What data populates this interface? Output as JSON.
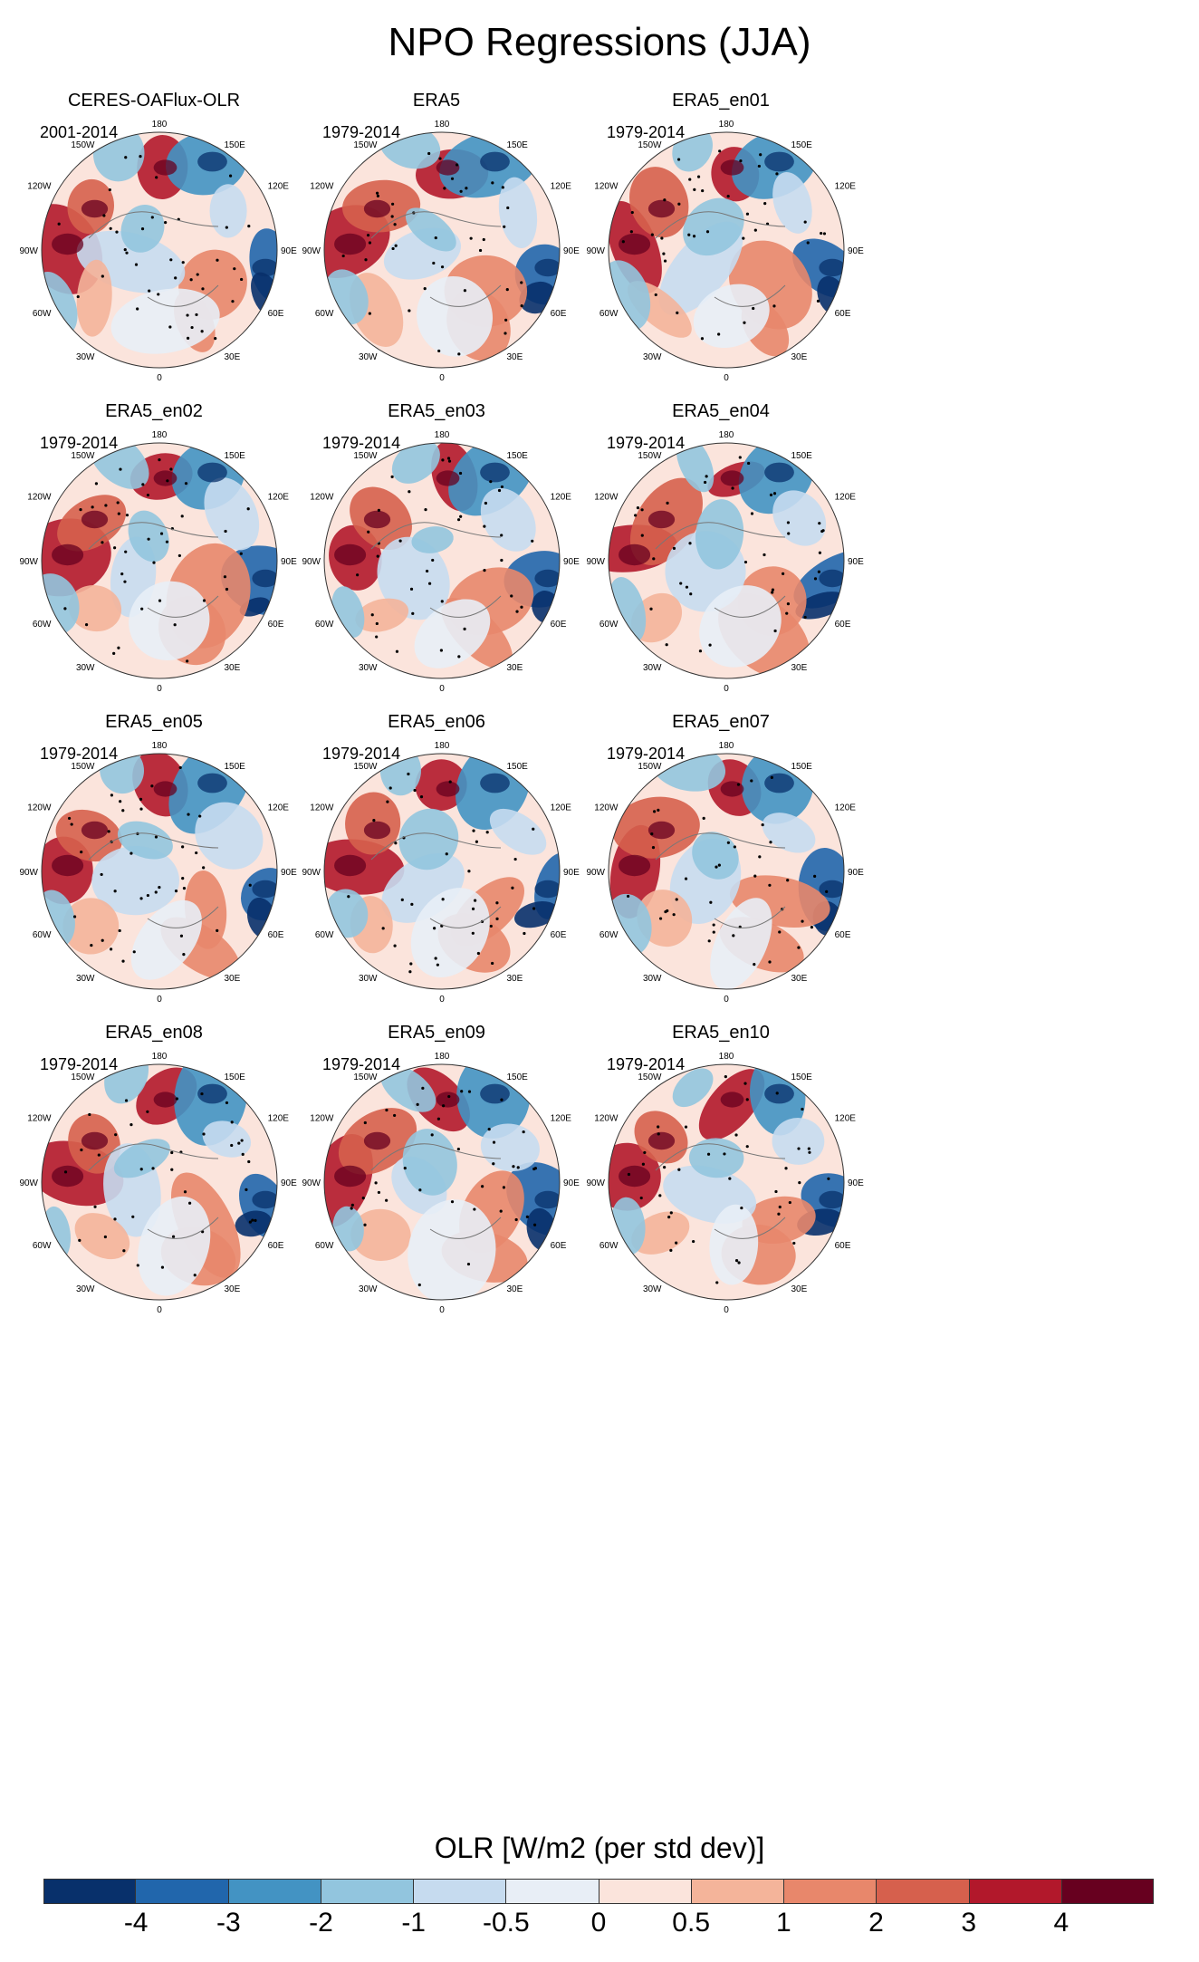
{
  "title": "NPO Regressions (JJA)",
  "panels": [
    {
      "title": "CERES-OAFlux-OLR",
      "period": "2001-2014"
    },
    {
      "title": "ERA5",
      "period": "1979-2014"
    },
    {
      "title": "ERA5_en01",
      "period": "1979-2014"
    },
    {
      "title": "ERA5_en02",
      "period": "1979-2014"
    },
    {
      "title": "ERA5_en03",
      "period": "1979-2014"
    },
    {
      "title": "ERA5_en04",
      "period": "1979-2014"
    },
    {
      "title": "ERA5_en05",
      "period": "1979-2014"
    },
    {
      "title": "ERA5_en06",
      "period": "1979-2014"
    },
    {
      "title": "ERA5_en07",
      "period": "1979-2014"
    },
    {
      "title": "ERA5_en08",
      "period": "1979-2014"
    },
    {
      "title": "ERA5_en09",
      "period": "1979-2014"
    },
    {
      "title": "ERA5_en10",
      "period": "1979-2014"
    }
  ],
  "longitude_labels": {
    "top": "180",
    "top_left": "150W",
    "top_right": "150E",
    "upper_left": "120W",
    "upper_right": "120E",
    "left": "90W",
    "right": "90E",
    "lower_left": "60W",
    "lower_right": "60E",
    "bottom_left": "30W",
    "bottom_right": "30E",
    "bottom": "0"
  },
  "colorbar": {
    "title": "OLR [W/m2 (per std dev)]",
    "tick_labels": [
      "-4",
      "-3",
      "-2",
      "-1",
      "-0.5",
      "0",
      "0.5",
      "1",
      "2",
      "3",
      "4"
    ],
    "colors": [
      "#08306b",
      "#2166ac",
      "#4393c3",
      "#92c5de",
      "#c6dbef",
      "#e8eef6",
      "#fbe4dc",
      "#f4b49a",
      "#e8876b",
      "#d6604d",
      "#b2182b",
      "#67001f"
    ]
  }
}
